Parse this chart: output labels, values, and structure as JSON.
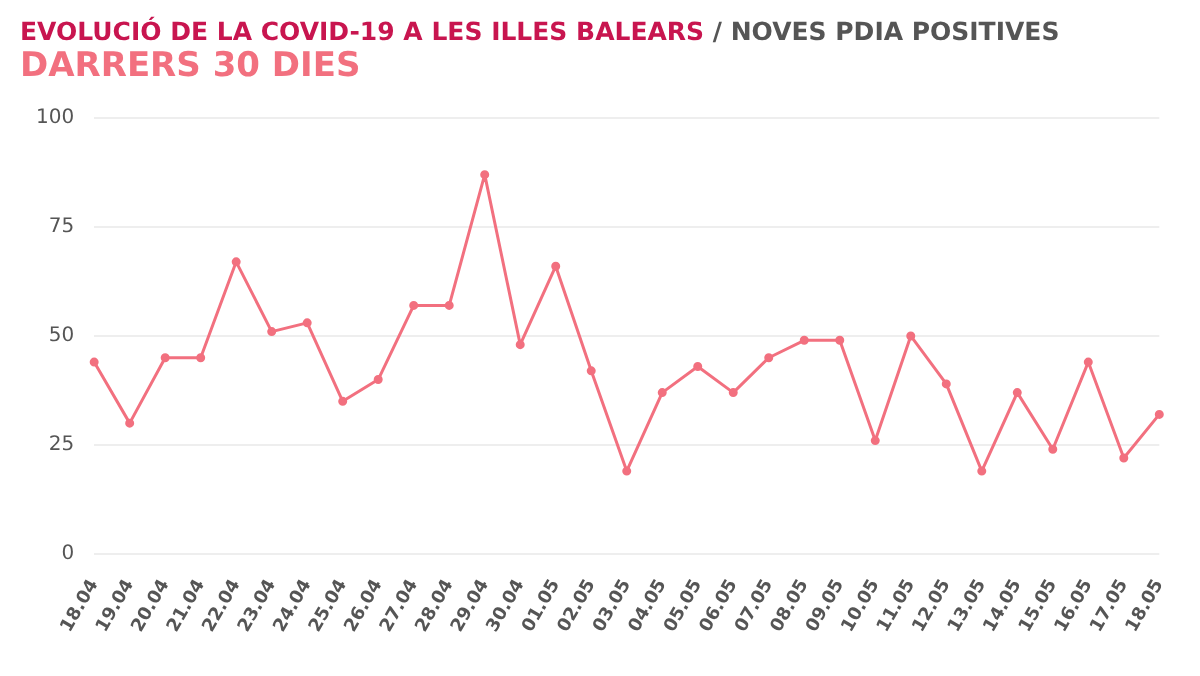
{
  "chart_data": {
    "type": "line",
    "title": "EVOLUCIÓ DE LA COVID-19 A LES ILLES BALEARS / NOVES PDIA POSITIVES",
    "subtitle": "DARRERS 30 DIES",
    "categories": [
      "18.04",
      "19.04",
      "20.04",
      "21.04",
      "22.04",
      "23.04",
      "24.04",
      "25.04",
      "26.04",
      "27.04",
      "28.04",
      "29.04",
      "30.04",
      "01.05",
      "02.05",
      "03.05",
      "04.05",
      "05.05",
      "06.05",
      "07.05",
      "08.05",
      "09.05",
      "10.05",
      "11.05",
      "12.05",
      "13.05",
      "14.05",
      "15.05",
      "16.05",
      "17.05",
      "18.05"
    ],
    "values": [
      44,
      30,
      45,
      45,
      67,
      51,
      53,
      35,
      40,
      57,
      57,
      87,
      48,
      66,
      42,
      19,
      37,
      43,
      37,
      45,
      49,
      49,
      26,
      50,
      39,
      19,
      37,
      24,
      44,
      22,
      32
    ],
    "color": "#f2707f",
    "ylim": [
      0,
      100
    ],
    "yticks": [
      0,
      25,
      50,
      75,
      100
    ],
    "grid": "y",
    "marker": "circle",
    "legend": false
  }
}
